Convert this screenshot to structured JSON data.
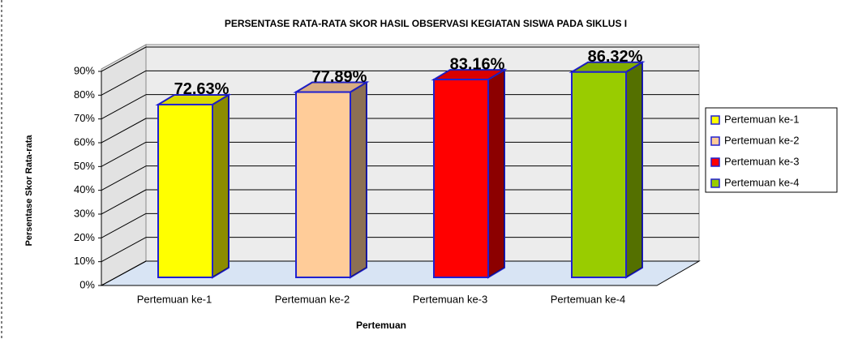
{
  "chart_data": {
    "type": "bar",
    "title": "PERSENTASE RATA-RATA SKOR HASIL OBSERVASI KEGIATAN SISWA PADA SIKLUS I",
    "x_label": "Pertemuan",
    "y_label": "Persentase Skor Rata-rata",
    "categories": [
      "Pertemuan ke-1",
      "Pertemuan ke-2",
      "Pertemuan ke-3",
      "Pertemuan ke-4"
    ],
    "values": [
      72.63,
      77.89,
      83.16,
      86.32
    ],
    "value_labels": [
      "72.63%",
      "77.89%",
      "83.16%",
      "86.32%"
    ],
    "colors": [
      "#ffff00",
      "#ffcc99",
      "#ff0000",
      "#99cc00"
    ],
    "ylim": [
      0,
      90
    ],
    "yticks": [
      {
        "value": 0,
        "label": "0%"
      },
      {
        "value": 10,
        "label": "10%"
      },
      {
        "value": 20,
        "label": "20%"
      },
      {
        "value": 30,
        "label": "30%"
      },
      {
        "value": 40,
        "label": "40%"
      },
      {
        "value": 50,
        "label": "50%"
      },
      {
        "value": 60,
        "label": "60%"
      },
      {
        "value": 70,
        "label": "70%"
      },
      {
        "value": 80,
        "label": "80%"
      },
      {
        "value": 90,
        "label": "90%"
      }
    ],
    "grid": true,
    "legend": "right"
  }
}
